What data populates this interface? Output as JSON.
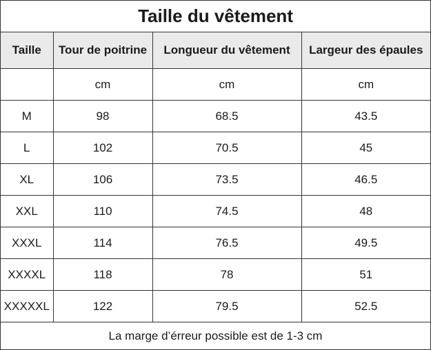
{
  "title": "Taille du vêtement",
  "headers": [
    "Taille",
    "Tour de poitrine",
    "Longueur du vêtement",
    "Largeur des épaules"
  ],
  "units": [
    "",
    "cm",
    "cm",
    "cm"
  ],
  "rows": [
    [
      "M",
      "98",
      "68.5",
      "43.5"
    ],
    [
      "L",
      "102",
      "70.5",
      "45"
    ],
    [
      "XL",
      "106",
      "73.5",
      "46.5"
    ],
    [
      "XXL",
      "110",
      "74.5",
      "48"
    ],
    [
      "XXXL",
      "114",
      "76.5",
      "49.5"
    ],
    [
      "XXXXL",
      "118",
      "78",
      "51"
    ],
    [
      "XXXXXL",
      "122",
      "79.5",
      "52.5"
    ]
  ],
  "note": "La marge d’érreur possible est de 1-3 cm",
  "colors": {
    "header_bg": "#eaeaea",
    "border": "#333333",
    "text": "#1a1a1a"
  }
}
